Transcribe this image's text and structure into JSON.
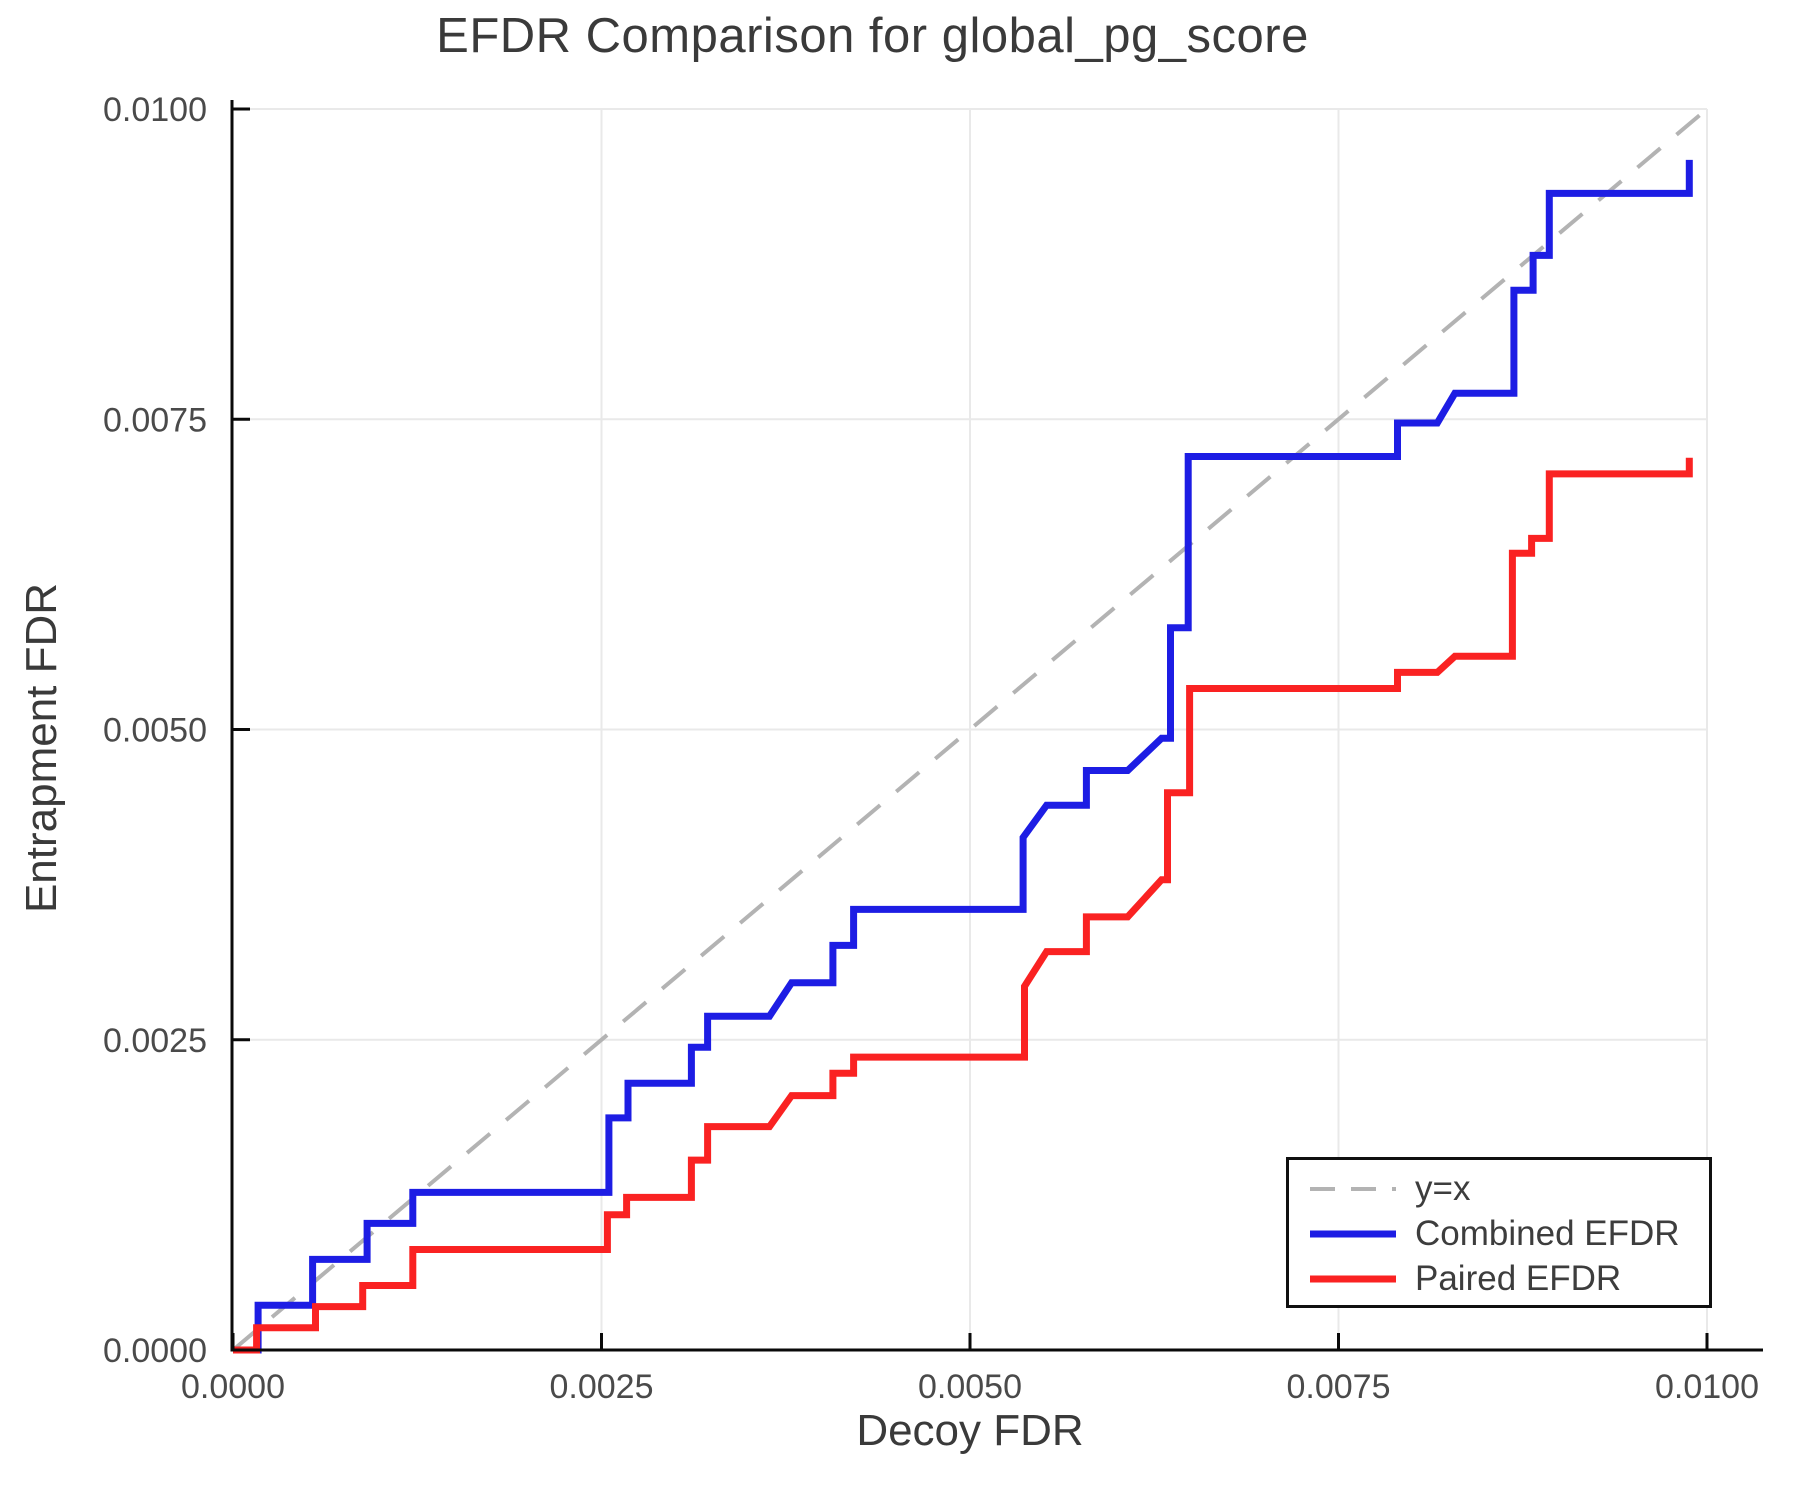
{
  "chart_data": {
    "type": "line",
    "title": "EFDR Comparison for global_pg_score",
    "xlabel": "Decoy FDR",
    "ylabel": "Entrapment FDR",
    "xlim": [
      0.0,
      0.01
    ],
    "ylim": [
      0.0,
      0.01
    ],
    "grid": true,
    "legend_position": "bottom-right",
    "xticks": {
      "values": [
        0.0,
        0.0025,
        0.005,
        0.0075,
        0.01
      ],
      "labels": [
        "0.0000",
        "0.0025",
        "0.0050",
        "0.0075",
        "0.0100"
      ]
    },
    "yticks": {
      "values": [
        0.0,
        0.0025,
        0.005,
        0.0075,
        0.01
      ],
      "labels": [
        "0.0000",
        "0.0025",
        "0.0050",
        "0.0075",
        "0.0100"
      ]
    },
    "colors": {
      "grid": "#e9e9e9",
      "spine": "#0a0a0a",
      "tick_label": "#4a4a4a",
      "title_text": "#3a3a3a"
    },
    "series": [
      {
        "name": "y=x",
        "style": "dashed",
        "color": "#b3b3b3",
        "points": [
          [
            0.0,
            0.0
          ],
          [
            0.01,
            0.01
          ]
        ]
      },
      {
        "name": "Combined EFDR",
        "style": "solid",
        "color": "#1d1de4",
        "points": [
          [
            0.0,
            0.0
          ],
          [
            0.00017,
            0.0
          ],
          [
            0.00017,
            0.00036
          ],
          [
            0.00054,
            0.00036
          ],
          [
            0.00054,
            0.00073
          ],
          [
            0.00091,
            0.00073
          ],
          [
            0.00091,
            0.00102
          ],
          [
            0.00122,
            0.00102
          ],
          [
            0.00122,
            0.00127
          ],
          [
            0.00255,
            0.00127
          ],
          [
            0.00255,
            0.00187
          ],
          [
            0.00268,
            0.00187
          ],
          [
            0.00268,
            0.00215
          ],
          [
            0.00311,
            0.00215
          ],
          [
            0.00311,
            0.00244
          ],
          [
            0.00322,
            0.00244
          ],
          [
            0.00322,
            0.00269
          ],
          [
            0.00364,
            0.00269
          ],
          [
            0.00379,
            0.00296
          ],
          [
            0.00407,
            0.00296
          ],
          [
            0.00407,
            0.00326
          ],
          [
            0.00421,
            0.00326
          ],
          [
            0.00421,
            0.00355
          ],
          [
            0.00536,
            0.00355
          ],
          [
            0.00536,
            0.00413
          ],
          [
            0.00552,
            0.00439
          ],
          [
            0.00579,
            0.00439
          ],
          [
            0.00579,
            0.00467
          ],
          [
            0.00607,
            0.00467
          ],
          [
            0.0063,
            0.00493
          ],
          [
            0.00636,
            0.00493
          ],
          [
            0.00636,
            0.00582
          ],
          [
            0.00648,
            0.00582
          ],
          [
            0.00648,
            0.0072
          ],
          [
            0.0079,
            0.0072
          ],
          [
            0.0079,
            0.00747
          ],
          [
            0.00817,
            0.00747
          ],
          [
            0.00829,
            0.00771
          ],
          [
            0.00869,
            0.00771
          ],
          [
            0.00869,
            0.00854
          ],
          [
            0.00882,
            0.00854
          ],
          [
            0.00882,
            0.00882
          ],
          [
            0.00893,
            0.00882
          ],
          [
            0.00893,
            0.00932
          ],
          [
            0.00988,
            0.00932
          ],
          [
            0.00988,
            0.00959
          ]
        ]
      },
      {
        "name": "Paired EFDR",
        "style": "solid",
        "color": "#fa2222",
        "points": [
          [
            0.0,
            0.0
          ],
          [
            0.00016,
            0.0
          ],
          [
            0.00016,
            0.00018
          ],
          [
            0.00056,
            0.00018
          ],
          [
            0.00056,
            0.00035
          ],
          [
            0.00088,
            0.00035
          ],
          [
            0.00088,
            0.00052
          ],
          [
            0.00122,
            0.00052
          ],
          [
            0.00122,
            0.00081
          ],
          [
            0.00254,
            0.00081
          ],
          [
            0.00254,
            0.00109
          ],
          [
            0.00267,
            0.00109
          ],
          [
            0.00267,
            0.00123
          ],
          [
            0.00311,
            0.00123
          ],
          [
            0.00311,
            0.00153
          ],
          [
            0.00322,
            0.00153
          ],
          [
            0.00322,
            0.0018
          ],
          [
            0.00364,
            0.0018
          ],
          [
            0.00379,
            0.00205
          ],
          [
            0.00407,
            0.00205
          ],
          [
            0.00407,
            0.00223
          ],
          [
            0.00421,
            0.00223
          ],
          [
            0.00421,
            0.00236
          ],
          [
            0.00537,
            0.00236
          ],
          [
            0.00537,
            0.00293
          ],
          [
            0.00552,
            0.00321
          ],
          [
            0.00579,
            0.00321
          ],
          [
            0.00579,
            0.00349
          ],
          [
            0.00607,
            0.00349
          ],
          [
            0.0063,
            0.00379
          ],
          [
            0.00634,
            0.00379
          ],
          [
            0.00634,
            0.00449
          ],
          [
            0.00649,
            0.00449
          ],
          [
            0.00649,
            0.00533
          ],
          [
            0.0079,
            0.00533
          ],
          [
            0.0079,
            0.00546
          ],
          [
            0.00817,
            0.00546
          ],
          [
            0.00829,
            0.00559
          ],
          [
            0.00868,
            0.00559
          ],
          [
            0.00868,
            0.00642
          ],
          [
            0.00881,
            0.00642
          ],
          [
            0.00881,
            0.00654
          ],
          [
            0.00893,
            0.00654
          ],
          [
            0.00893,
            0.00706
          ],
          [
            0.00988,
            0.00706
          ],
          [
            0.00988,
            0.00719
          ]
        ]
      }
    ]
  },
  "legend": {
    "entries": [
      {
        "label": "y=x"
      },
      {
        "label": "Combined EFDR"
      },
      {
        "label": "Paired EFDR"
      }
    ]
  }
}
